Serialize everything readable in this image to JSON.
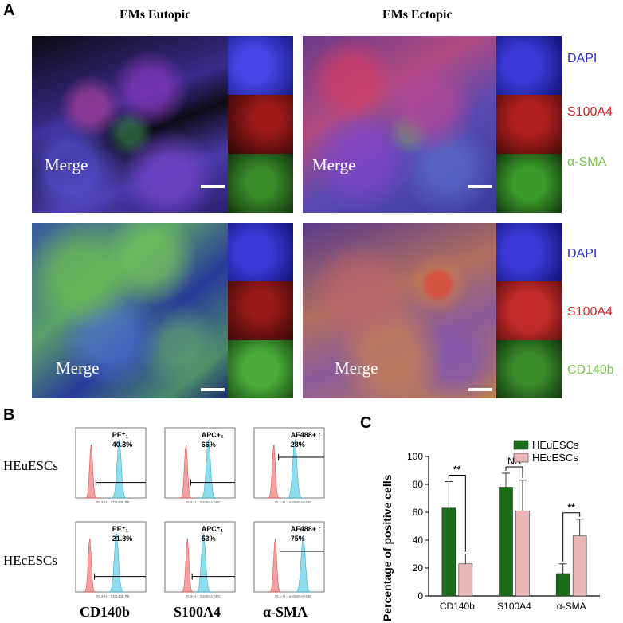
{
  "panel_a": {
    "letter": "A",
    "col_titles": [
      "EMs Eutopic",
      "EMs Ectopic"
    ],
    "merge_label": "Merge",
    "row1_channels": [
      "DAPI",
      "S100A4",
      "α-SMA"
    ],
    "row2_channels": [
      "DAPI",
      "S100A4",
      "CD140b"
    ],
    "channel_colors": {
      "DAPI": "#2a2ad6",
      "S100A4": "#d42020",
      "α-SMA": "#7ac24a",
      "CD140b": "#7ac24a"
    }
  },
  "panel_b": {
    "letter": "B",
    "row_labels": [
      "HEuESCs",
      "HEcESCs"
    ],
    "markers": [
      "CD140b",
      "S100A4",
      "α-SMA"
    ],
    "gates": [
      [
        {
          "name": "PE⁺₁",
          "pct": "40.3%"
        },
        {
          "name": "APC+₁",
          "pct": "66%"
        },
        {
          "name": "AF488+ :",
          "pct": "28%"
        }
      ],
      [
        {
          "name": "PE⁺₁",
          "pct": "21.8%"
        },
        {
          "name": "APC⁺₁",
          "pct": "53%"
        },
        {
          "name": "AF488+ :",
          "pct": "75%"
        }
      ]
    ],
    "xaxis_labels": [
      "FL3-H :: CD140b PE",
      "FL4-H :: S100A4 APC",
      "FL1-H :: α-SMA AF488"
    ],
    "colors": {
      "control": "#f08080",
      "stained": "#5ccfe6"
    }
  },
  "panel_c": {
    "letter": "C",
    "chart_data": {
      "type": "bar",
      "categories": [
        "CD140b",
        "S100A4",
        "α-SMA"
      ],
      "series": [
        {
          "name": "HEuESCs",
          "values": [
            63,
            78,
            16
          ],
          "errors": [
            19,
            10,
            7
          ],
          "color": "#1a6b1a"
        },
        {
          "name": "HEcESCs",
          "values": [
            23,
            61,
            43
          ],
          "errors": [
            7,
            22,
            12
          ],
          "color": "#e8b6b6"
        }
      ],
      "ylabel": "Percentage of positive cells",
      "ylim": [
        0,
        100
      ],
      "yticks": [
        0,
        20,
        40,
        60,
        80,
        100
      ],
      "significance": [
        "**",
        "NS",
        "**"
      ],
      "legend_position": "top-right"
    }
  }
}
